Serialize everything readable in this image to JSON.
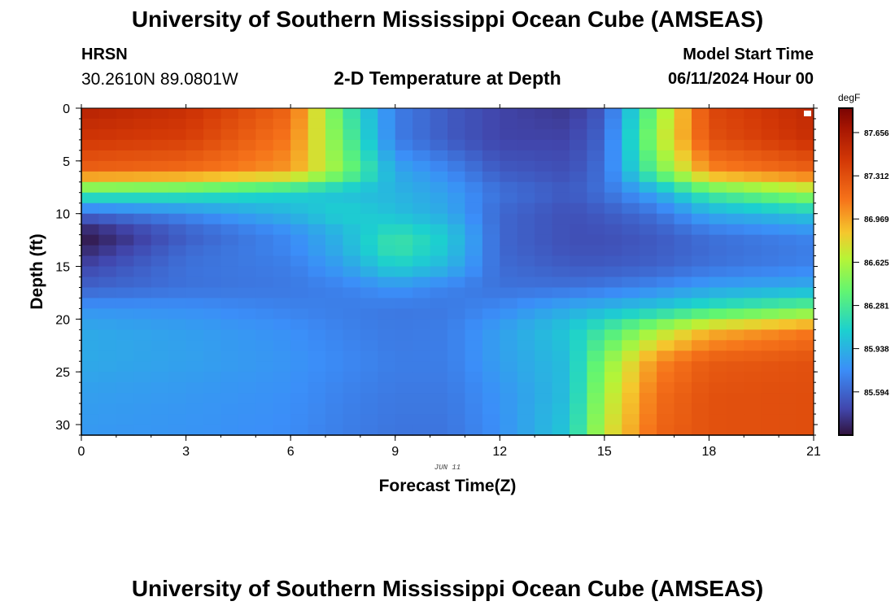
{
  "header": {
    "title": "University of Southern Mississippi Ocean Cube (AMSEAS)",
    "station": "HRSN",
    "coords": "30.2610N  89.0801W",
    "chart_title": "2-D Temperature at Depth",
    "model_start_label": "Model Start Time",
    "model_start_value": "06/11/2024 Hour 00"
  },
  "footer": {
    "title": "University of Southern Mississippi Ocean Cube (AMSEAS)"
  },
  "chart_data": {
    "type": "heatmap",
    "title": "2-D Temperature at Depth",
    "xlabel": "Forecast Time(Z)",
    "ylabel": "Depth (ft)",
    "date_label": "JUN 11",
    "x_ticks": [
      "0",
      "3",
      "6",
      "9",
      "12",
      "15",
      "18",
      "21"
    ],
    "y_ticks": [
      "0",
      "5",
      "10",
      "15",
      "20",
      "25",
      "30"
    ],
    "xlim": [
      0,
      21
    ],
    "ylim": [
      0,
      31
    ],
    "colorbar_unit": "degF",
    "colorbar_ticks": [
      "87.656",
      "87.312",
      "86.969",
      "86.625",
      "86.281",
      "85.938",
      "85.594"
    ],
    "colorbar_range": [
      85.25,
      87.85
    ],
    "x": [
      0,
      3,
      6,
      7.5,
      9,
      10.5,
      12,
      14,
      15,
      16.5,
      18,
      21
    ],
    "depths": [
      0,
      3,
      6,
      8,
      10,
      12,
      13,
      15,
      17,
      19,
      21,
      24,
      27,
      31
    ],
    "values": [
      [
        87.6,
        87.5,
        87.2,
        86.3,
        85.7,
        85.55,
        85.45,
        85.4,
        85.55,
        86.5,
        87.35,
        87.55
      ],
      [
        87.45,
        87.4,
        87.1,
        86.4,
        85.7,
        85.55,
        85.45,
        85.45,
        85.6,
        86.6,
        87.3,
        87.5
      ],
      [
        87.2,
        87.15,
        87.0,
        86.5,
        85.9,
        85.75,
        85.55,
        85.5,
        85.65,
        86.4,
        87.05,
        87.2
      ],
      [
        86.3,
        86.25,
        86.1,
        86.0,
        85.95,
        85.85,
        85.65,
        85.55,
        85.65,
        85.9,
        86.3,
        86.6
      ],
      [
        85.6,
        85.75,
        85.95,
        86.1,
        86.0,
        85.9,
        85.6,
        85.5,
        85.55,
        85.65,
        85.9,
        86.05
      ],
      [
        85.25,
        85.55,
        85.75,
        85.95,
        86.2,
        86.05,
        85.6,
        85.5,
        85.5,
        85.55,
        85.65,
        85.75
      ],
      [
        85.3,
        85.6,
        85.75,
        85.95,
        86.25,
        86.05,
        85.6,
        85.5,
        85.5,
        85.55,
        85.62,
        85.7
      ],
      [
        85.45,
        85.65,
        85.7,
        85.85,
        86.1,
        85.95,
        85.62,
        85.55,
        85.55,
        85.58,
        85.65,
        85.72
      ],
      [
        85.58,
        85.65,
        85.68,
        85.72,
        85.8,
        85.72,
        85.65,
        85.65,
        85.68,
        85.75,
        85.85,
        85.92
      ],
      [
        85.8,
        85.78,
        85.72,
        85.7,
        85.68,
        85.68,
        85.75,
        85.9,
        85.95,
        86.05,
        86.2,
        86.4
      ],
      [
        85.9,
        85.85,
        85.78,
        85.72,
        85.68,
        85.7,
        85.85,
        86.05,
        86.25,
        86.6,
        86.9,
        87.1
      ],
      [
        85.9,
        85.86,
        85.8,
        85.75,
        85.7,
        85.7,
        85.85,
        86.0,
        86.5,
        87.05,
        87.25,
        87.3
      ],
      [
        85.85,
        85.82,
        85.78,
        85.72,
        85.68,
        85.68,
        85.8,
        86.0,
        86.6,
        87.15,
        87.3,
        87.32
      ],
      [
        85.82,
        85.8,
        85.76,
        85.7,
        85.66,
        85.66,
        85.78,
        86.05,
        86.7,
        87.2,
        87.3,
        87.32
      ]
    ]
  }
}
